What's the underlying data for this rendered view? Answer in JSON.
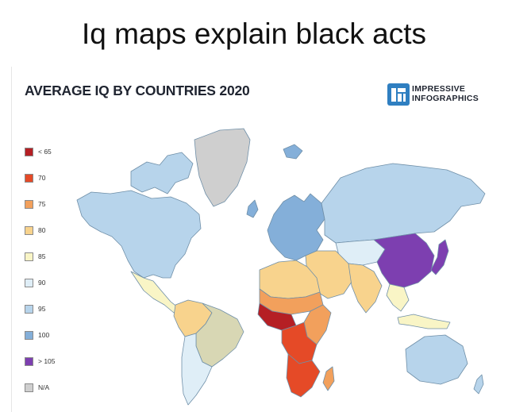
{
  "meme": {
    "caption": "Iq maps explain black acts"
  },
  "infographic": {
    "title": "AVERAGE IQ BY COUNTRIES 2020",
    "brand": {
      "line1": "IMPRESSIVE",
      "line2": "INFOGRAPHICS",
      "color": "#2f7fc1"
    }
  },
  "legend": [
    {
      "label": "< 65",
      "color": "#b51f24"
    },
    {
      "label": "70",
      "color": "#e54a27"
    },
    {
      "label": "75",
      "color": "#f2a05c"
    },
    {
      "label": "80",
      "color": "#f8d38d"
    },
    {
      "label": "85",
      "color": "#f9f5c6"
    },
    {
      "label": "90",
      "color": "#dfeef7"
    },
    {
      "label": "95",
      "color": "#b7d4eb"
    },
    {
      "label": "100",
      "color": "#84afd9"
    },
    {
      "label": "> 105",
      "color": "#7d3fb0"
    },
    {
      "label": "N/A",
      "color": "#cfcfcf"
    }
  ],
  "map_colors": {
    "ocean": "#ffffff",
    "stroke": "#6f8fa8",
    "greenland": "#cfcfcf",
    "north_america": "#b7d4eb",
    "central_america": "#f9f5c6",
    "south_america_north": "#f8d38d",
    "brazil": "#d8d7b4",
    "south_america_south": "#dfeef7",
    "europe": "#84afd9",
    "russia": "#b7d4eb",
    "middle_east": "#f8d38d",
    "central_asia": "#dfeef7",
    "south_asia": "#f8d38d",
    "china_east_asia": "#7d3fb0",
    "southeast_asia": "#f9f5c6",
    "north_africa": "#f8d38d",
    "sahel": "#f2a05c",
    "west_africa": "#b51f24",
    "central_africa": "#e54a27",
    "east_africa": "#f2a05c",
    "southern_africa": "#e54a27",
    "australia": "#b7d4eb",
    "madagascar": "#f2a05c"
  }
}
